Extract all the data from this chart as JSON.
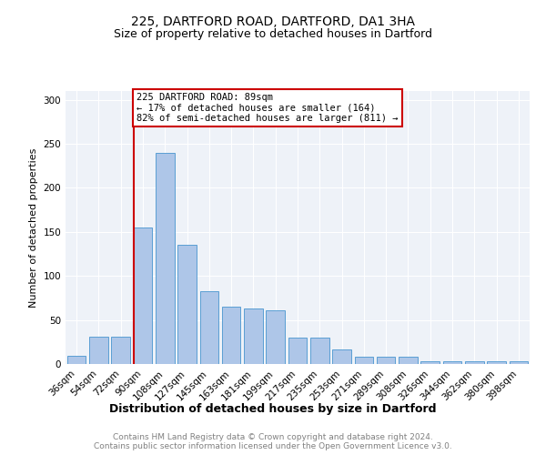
{
  "title1": "225, DARTFORD ROAD, DARTFORD, DA1 3HA",
  "title2": "Size of property relative to detached houses in Dartford",
  "xlabel": "Distribution of detached houses by size in Dartford",
  "ylabel": "Number of detached properties",
  "categories": [
    "36sqm",
    "54sqm",
    "72sqm",
    "90sqm",
    "108sqm",
    "127sqm",
    "145sqm",
    "163sqm",
    "181sqm",
    "199sqm",
    "217sqm",
    "235sqm",
    "253sqm",
    "271sqm",
    "289sqm",
    "308sqm",
    "326sqm",
    "344sqm",
    "362sqm",
    "380sqm",
    "398sqm"
  ],
  "values": [
    9,
    31,
    31,
    155,
    240,
    135,
    83,
    65,
    63,
    61,
    30,
    30,
    17,
    8,
    8,
    8,
    3,
    3,
    3,
    3,
    3
  ],
  "bar_color": "#aec6e8",
  "bar_edge_color": "#5a9fd4",
  "vline_color": "#cc0000",
  "annotation_lines": [
    "225 DARTFORD ROAD: 89sqm",
    "← 17% of detached houses are smaller (164)",
    "82% of semi-detached houses are larger (811) →"
  ],
  "annotation_box_color": "#cc0000",
  "ylim": [
    0,
    310
  ],
  "yticks": [
    0,
    50,
    100,
    150,
    200,
    250,
    300
  ],
  "footer": "Contains HM Land Registry data © Crown copyright and database right 2024.\nContains public sector information licensed under the Open Government Licence v3.0.",
  "plot_bg_color": "#eef2f8",
  "title1_fontsize": 10,
  "title2_fontsize": 9,
  "ylabel_fontsize": 8,
  "xlabel_fontsize": 9,
  "tick_fontsize": 7.5,
  "footer_fontsize": 6.5,
  "ann_fontsize": 7.5
}
